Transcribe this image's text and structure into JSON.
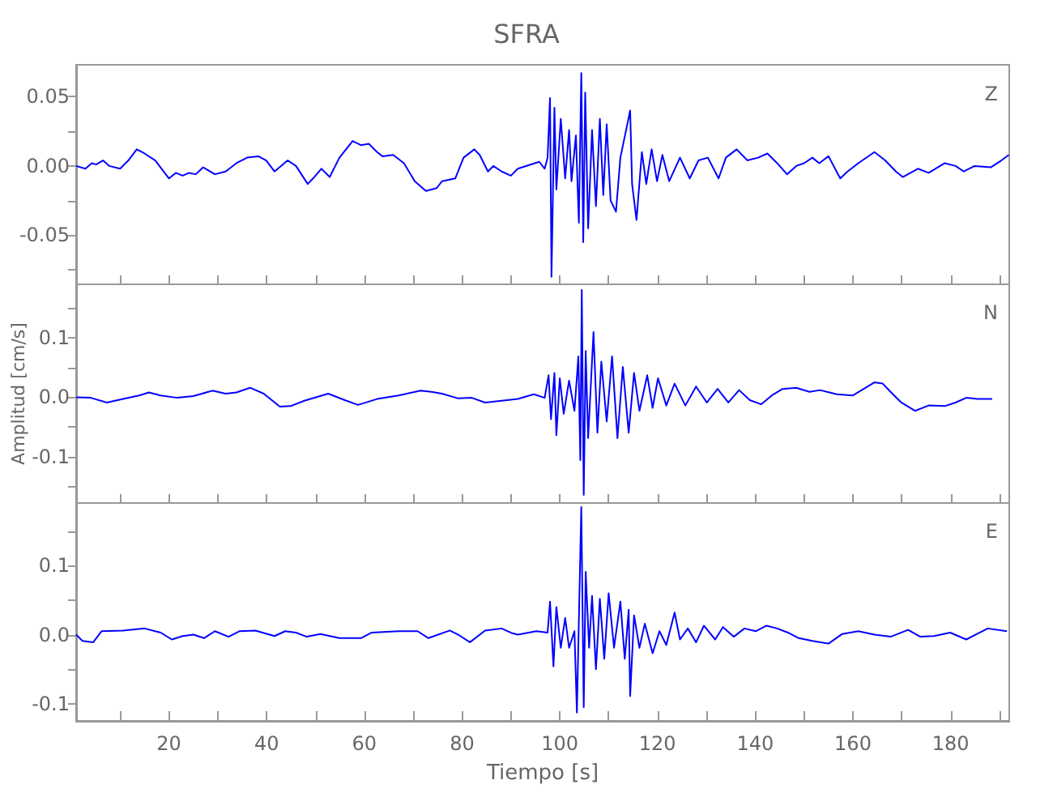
{
  "chart_data": [
    {
      "type": "line",
      "title": "SFRA",
      "annotations": [
        "Z"
      ],
      "color": "#0000ff",
      "tick_labels": "y",
      "xlim": [
        1,
        192
      ],
      "xticks": [
        {
          "value": 10,
          "label": null
        },
        {
          "value": 20,
          "label": null
        },
        {
          "value": 30,
          "label": null
        },
        {
          "value": 40,
          "label": null
        },
        {
          "value": 50,
          "label": null
        },
        {
          "value": 60,
          "label": null
        },
        {
          "value": 70,
          "label": null
        },
        {
          "value": 80,
          "label": null
        },
        {
          "value": 90,
          "label": null
        },
        {
          "value": 100,
          "label": null
        },
        {
          "value": 110,
          "label": null
        },
        {
          "value": 120,
          "label": null
        },
        {
          "value": 130,
          "label": null
        },
        {
          "value": 140,
          "label": null
        },
        {
          "value": 150,
          "label": null
        },
        {
          "value": 160,
          "label": null
        },
        {
          "value": 170,
          "label": null
        },
        {
          "value": 180,
          "label": null
        },
        {
          "value": 190,
          "label": null
        }
      ],
      "ylim": [
        -0.086,
        0.073
      ],
      "yticks": [
        {
          "value": -0.075,
          "label": null
        },
        {
          "value": -0.05,
          "label": "-0.05"
        },
        {
          "value": -0.025,
          "label": null
        },
        {
          "value": 0,
          "label": "0.00"
        },
        {
          "value": 0.025,
          "label": null
        },
        {
          "value": 0.05,
          "label": "0.05"
        }
      ],
      "x": [
        1.0,
        2.9,
        4.2,
        5.1,
        6.5,
        7.8,
        10.0,
        11.7,
        13.4,
        15.0,
        17.2,
        20.0,
        21.4,
        22.8,
        24.1,
        25.5,
        27.0,
        29.4,
        31.6,
        33.8,
        36.0,
        38.3,
        39.9,
        41.6,
        44.3,
        46.0,
        48.4,
        49.5,
        51.2,
        52.9,
        54.9,
        57.6,
        59.3,
        60.9,
        62.6,
        63.7,
        65.9,
        68.1,
        70.3,
        72.6,
        74.8,
        75.9,
        78.6,
        80.3,
        82.5,
        83.6,
        85.3,
        86.4,
        88.1,
        90.0,
        91.4,
        95.8,
        96.9,
        97.5,
        98.0,
        98.3,
        98.9,
        99.3,
        100.2,
        101.1,
        101.9,
        102.4,
        103.3,
        103.9,
        104.4,
        104.8,
        105.2,
        105.8,
        106.6,
        107.4,
        108.2,
        108.9,
        109.6,
        110.4,
        111.5,
        112.4,
        114.4,
        114.8,
        115.7,
        116.8,
        117.7,
        118.8,
        119.9,
        121.0,
        122.4,
        124.6,
        126.6,
        128.4,
        130.3,
        132.5,
        134.0,
        136.2,
        138.4,
        140.6,
        142.5,
        144.5,
        146.5,
        148.4,
        150.0,
        151.7,
        153.1,
        155.0,
        157.4,
        158.9,
        161.1,
        164.4,
        166.6,
        168.8,
        170.2,
        173.3,
        175.5,
        178.8,
        181.0,
        182.7,
        184.9,
        188.2,
        190.4,
        191.9
      ],
      "values": [
        0,
        -0.002,
        0.002,
        0.001,
        0.004,
        0,
        -0.002,
        0.004,
        0.012,
        0.009,
        0.004,
        -0.009,
        -0.005,
        -0.007,
        -0.005,
        -0.006,
        -0.001,
        -0.006,
        -0.004,
        0.002,
        0.006,
        0.007,
        0.004,
        -0.004,
        0.004,
        0,
        -0.013,
        -0.009,
        -0.002,
        -0.008,
        0.006,
        0.018,
        0.015,
        0.016,
        0.01,
        0.007,
        0.008,
        0.002,
        -0.011,
        -0.018,
        -0.016,
        -0.011,
        -0.009,
        0.006,
        0.012,
        0.008,
        -0.004,
        0,
        -0.004,
        -0.007,
        -0.002,
        0.003,
        -0.002,
        0.006,
        0.049,
        -0.08,
        0.042,
        -0.017,
        0.034,
        -0.009,
        0.026,
        -0.011,
        0.022,
        -0.041,
        0.067,
        -0.055,
        0.053,
        -0.045,
        0.026,
        -0.029,
        0.034,
        -0.021,
        0.03,
        -0.025,
        -0.033,
        0.006,
        0.04,
        -0.013,
        -0.039,
        0.01,
        -0.013,
        0.012,
        -0.011,
        0.008,
        -0.011,
        0.006,
        -0.009,
        0.004,
        0.006,
        -0.009,
        0.006,
        0.012,
        0.004,
        0.006,
        0.009,
        0.002,
        -0.006,
        0,
        0.002,
        0.006,
        0.002,
        0.007,
        -0.009,
        -0.004,
        0.002,
        0.01,
        0.004,
        -0.004,
        -0.008,
        -0.002,
        -0.005,
        0.002,
        0,
        -0.004,
        0,
        -0.001,
        0.004,
        0.008
      ]
    },
    {
      "type": "line",
      "ylabel": "Amplitud [cm/s]",
      "annotations": [
        "N"
      ],
      "color": "#0000ff",
      "tick_labels": "y",
      "xlim": [
        1,
        192
      ],
      "xticks": [
        {
          "value": 10,
          "label": null
        },
        {
          "value": 20,
          "label": null
        },
        {
          "value": 30,
          "label": null
        },
        {
          "value": 40,
          "label": null
        },
        {
          "value": 50,
          "label": null
        },
        {
          "value": 60,
          "label": null
        },
        {
          "value": 70,
          "label": null
        },
        {
          "value": 80,
          "label": null
        },
        {
          "value": 90,
          "label": null
        },
        {
          "value": 100,
          "label": null
        },
        {
          "value": 110,
          "label": null
        },
        {
          "value": 120,
          "label": null
        },
        {
          "value": 130,
          "label": null
        },
        {
          "value": 140,
          "label": null
        },
        {
          "value": 150,
          "label": null
        },
        {
          "value": 160,
          "label": null
        },
        {
          "value": 170,
          "label": null
        },
        {
          "value": 180,
          "label": null
        },
        {
          "value": 190,
          "label": null
        }
      ],
      "ylim": [
        -0.18,
        0.192
      ],
      "yticks": [
        {
          "value": -0.15,
          "label": null
        },
        {
          "value": -0.1,
          "label": "-0.1"
        },
        {
          "value": -0.05,
          "label": null
        },
        {
          "value": 0,
          "label": "0.0"
        },
        {
          "value": 0.05,
          "label": null
        },
        {
          "value": 0.1,
          "label": "0.1"
        },
        {
          "value": 0.15,
          "label": null
        }
      ],
      "x": [
        1.0,
        4.0,
        7.3,
        10.6,
        13.9,
        15.9,
        18.3,
        21.7,
        25.0,
        28.9,
        31.6,
        33.8,
        36.6,
        39.4,
        42.7,
        44.9,
        47.7,
        52.6,
        56.0,
        58.7,
        62.6,
        67.0,
        71.5,
        73.7,
        75.9,
        79.2,
        82.0,
        84.7,
        88.1,
        91.4,
        94.7,
        96.9,
        97.7,
        98.2,
        98.9,
        99.3,
        100.0,
        100.8,
        101.9,
        103.0,
        103.8,
        104.2,
        104.5,
        104.9,
        105.3,
        105.8,
        106.9,
        107.7,
        108.5,
        109.6,
        110.7,
        111.8,
        112.9,
        114.1,
        115.2,
        116.3,
        117.9,
        119.0,
        120.1,
        121.8,
        123.5,
        125.7,
        127.9,
        130.1,
        132.3,
        134.5,
        136.7,
        138.9,
        141.2,
        143.4,
        145.6,
        148.4,
        151.1,
        153.3,
        156.7,
        160.0,
        162.2,
        164.4,
        166.1,
        167.7,
        169.9,
        172.7,
        175.5,
        178.8,
        181.0,
        183.2,
        185.4,
        188.5
      ],
      "values": [
        0,
        -0.001,
        -0.009,
        -0.003,
        0.003,
        0.008,
        0.003,
        -0.001,
        0.002,
        0.011,
        0.006,
        0.008,
        0.016,
        0.006,
        -0.016,
        -0.015,
        -0.006,
        0.006,
        -0.005,
        -0.013,
        -0.003,
        0.003,
        0.011,
        0.009,
        0.006,
        -0.002,
        -0.001,
        -0.009,
        -0.006,
        -0.003,
        0.005,
        -0.001,
        0.037,
        -0.037,
        0.041,
        -0.064,
        0.032,
        -0.028,
        0.028,
        -0.023,
        0.069,
        -0.106,
        0.181,
        -0.165,
        0.078,
        -0.069,
        0.11,
        -0.06,
        0.06,
        -0.041,
        0.069,
        -0.069,
        0.051,
        -0.06,
        0.041,
        -0.023,
        0.037,
        -0.018,
        0.032,
        -0.014,
        0.023,
        -0.014,
        0.018,
        -0.009,
        0.014,
        -0.009,
        0.012,
        -0.005,
        -0.012,
        0.003,
        0.014,
        0.016,
        0.009,
        0.012,
        0.005,
        0.003,
        0.014,
        0.025,
        0.023,
        0.009,
        -0.009,
        -0.023,
        -0.014,
        -0.015,
        -0.009,
        -0.001,
        -0.003,
        -0.003
      ]
    },
    {
      "type": "line",
      "xlabel": "Tiempo [s]",
      "annotations": [
        "E"
      ],
      "color": "#0000ff",
      "xlim": [
        1,
        192
      ],
      "xticks": [
        {
          "value": 10,
          "label": null
        },
        20,
        {
          "value": 30,
          "label": null
        },
        40,
        {
          "value": 50,
          "label": null
        },
        60,
        {
          "value": 70,
          "label": null
        },
        80,
        {
          "value": 90,
          "label": null
        },
        100,
        {
          "value": 110,
          "label": null
        },
        120,
        {
          "value": 130,
          "label": null
        },
        140,
        {
          "value": 150,
          "label": null
        },
        160,
        {
          "value": 170,
          "label": null
        },
        180,
        {
          "value": 190,
          "label": null
        }
      ],
      "ylim": [
        -0.125,
        0.192
      ],
      "yticks": [
        {
          "value": -0.1,
          "label": "-0.1"
        },
        {
          "value": -0.05,
          "label": null
        },
        {
          "value": 0,
          "label": "0.0"
        },
        {
          "value": 0.05,
          "label": null
        },
        {
          "value": 0.1,
          "label": "0.1"
        },
        {
          "value": 0.15,
          "label": null
        }
      ],
      "x": [
        1.0,
        2.3,
        4.5,
        6.2,
        10.6,
        15.0,
        18.3,
        20.6,
        22.8,
        25.0,
        27.2,
        29.4,
        32.2,
        34.4,
        37.7,
        41.6,
        43.8,
        46.0,
        48.2,
        51.0,
        54.9,
        59.3,
        61.5,
        67.0,
        70.9,
        73.1,
        77.5,
        79.2,
        81.6,
        84.7,
        88.1,
        90.3,
        91.4,
        95.2,
        97.5,
        98.0,
        98.7,
        99.3,
        100.2,
        101.1,
        101.9,
        103.0,
        103.5,
        104.4,
        104.9,
        105.3,
        106.0,
        106.6,
        107.4,
        108.2,
        109.1,
        110.0,
        111.1,
        112.4,
        113.3,
        114.1,
        114.4,
        115.2,
        116.3,
        117.4,
        119.0,
        120.4,
        121.8,
        123.5,
        124.6,
        126.2,
        127.9,
        129.5,
        131.8,
        133.4,
        135.6,
        137.8,
        140.1,
        142.3,
        144.5,
        146.7,
        148.9,
        151.7,
        155.0,
        157.8,
        161.1,
        164.4,
        167.7,
        171.3,
        173.8,
        176.6,
        179.9,
        183.2,
        185.4,
        187.6,
        191.5
      ],
      "values": [
        0,
        -0.009,
        -0.011,
        0.005,
        0.006,
        0.009,
        0.003,
        -0.007,
        -0.002,
        0,
        -0.005,
        0.005,
        -0.003,
        0.005,
        0.006,
        -0.002,
        0.005,
        0.003,
        -0.003,
        0.001,
        -0.005,
        -0.005,
        0.003,
        0.005,
        0.005,
        -0.005,
        0.006,
        0,
        -0.011,
        0.006,
        0.009,
        0.002,
        0,
        0.005,
        0.003,
        0.048,
        -0.046,
        0.04,
        -0.019,
        0.024,
        -0.019,
        0.005,
        -0.113,
        0.185,
        -0.105,
        0.091,
        -0.019,
        0.056,
        -0.05,
        0.052,
        -0.035,
        0.06,
        -0.019,
        0.048,
        -0.035,
        0.036,
        -0.089,
        0.028,
        -0.019,
        0.016,
        -0.027,
        0.005,
        -0.015,
        0.032,
        -0.007,
        0.009,
        -0.011,
        0.013,
        -0.007,
        0.011,
        -0.003,
        0.009,
        0.005,
        0.013,
        0.009,
        0.003,
        -0.005,
        -0.009,
        -0.013,
        0.001,
        0.005,
        0,
        -0.003,
        0.007,
        -0.003,
        -0.002,
        0.003,
        -0.007,
        0.001,
        0.009,
        0.005
      ]
    }
  ]
}
